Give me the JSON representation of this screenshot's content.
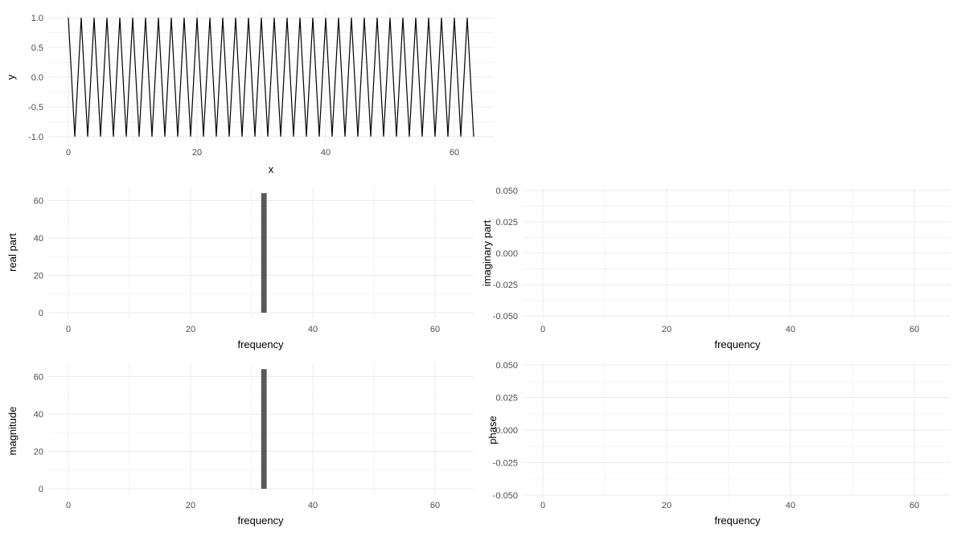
{
  "page": {
    "background": "#FFFFFF",
    "description": "Five-panel plot grid: time-domain signal and its FFT (real part, imaginary part, magnitude, phase)"
  },
  "colors": {
    "background": "#FFFFFF",
    "grid_major": "#EBEBEB",
    "grid_minor": "#F3F3F3",
    "tick_label": "#4D4D4D",
    "axis_title": "#000000",
    "signal_line": "#000000",
    "bar_fill": "#595959"
  },
  "chart_data": [
    {
      "id": "signal",
      "type": "line",
      "title": "",
      "xlabel": "x",
      "ylabel": "y",
      "xlim": [
        0,
        63
      ],
      "ylim": [
        -1,
        1
      ],
      "x_start": 0,
      "x_step": 1,
      "values": [
        1,
        -1,
        1,
        -1,
        1,
        -1,
        1,
        -1,
        1,
        -1,
        1,
        -1,
        1,
        -1,
        1,
        -1,
        1,
        -1,
        1,
        -1,
        1,
        -1,
        1,
        -1,
        1,
        -1,
        1,
        -1,
        1,
        -1,
        1,
        -1,
        1,
        -1,
        1,
        -1,
        1,
        -1,
        1,
        -1,
        1,
        -1,
        1,
        -1,
        1,
        -1,
        1,
        -1,
        1,
        -1,
        1,
        -1,
        1,
        -1,
        1,
        -1,
        1,
        -1,
        1,
        -1,
        1,
        -1,
        1,
        -1
      ],
      "xticks": {
        "values": [
          0,
          20,
          40,
          60
        ],
        "labels": [
          "0",
          "20",
          "40",
          "60"
        ]
      },
      "yticks": {
        "values": [
          1.0,
          0.5,
          0.0,
          -0.5,
          -1.0
        ],
        "labels": [
          "1.0",
          "0.5",
          "0.0",
          "-0.5",
          "-1.0"
        ]
      },
      "grid": "major+minor",
      "legend": "none"
    },
    {
      "id": "real-part",
      "type": "bar",
      "title": "",
      "xlabel": "frequency",
      "ylabel": "real part",
      "xlim": [
        0,
        63
      ],
      "ylim": [
        0,
        64
      ],
      "x_start": 0,
      "x_step": 1,
      "values": [
        0,
        0,
        0,
        0,
        0,
        0,
        0,
        0,
        0,
        0,
        0,
        0,
        0,
        0,
        0,
        0,
        0,
        0,
        0,
        0,
        0,
        0,
        0,
        0,
        0,
        0,
        0,
        0,
        0,
        0,
        0,
        0,
        64,
        0,
        0,
        0,
        0,
        0,
        0,
        0,
        0,
        0,
        0,
        0,
        0,
        0,
        0,
        0,
        0,
        0,
        0,
        0,
        0,
        0,
        0,
        0,
        0,
        0,
        0,
        0,
        0,
        0,
        0,
        0
      ],
      "xticks": {
        "values": [
          0,
          20,
          40,
          60
        ],
        "labels": [
          "0",
          "20",
          "40",
          "60"
        ]
      },
      "yticks": {
        "values": [
          0,
          20,
          40,
          60
        ],
        "labels": [
          "0",
          "20",
          "40",
          "60"
        ]
      },
      "grid": "major+minor",
      "legend": "none"
    },
    {
      "id": "imaginary-part",
      "type": "bar",
      "title": "",
      "xlabel": "frequency",
      "ylabel": "imaginary part",
      "xlim": [
        0,
        63
      ],
      "ylim": [
        -0.05,
        0.05
      ],
      "x_start": 0,
      "x_step": 1,
      "values": [
        0,
        0,
        0,
        0,
        0,
        0,
        0,
        0,
        0,
        0,
        0,
        0,
        0,
        0,
        0,
        0,
        0,
        0,
        0,
        0,
        0,
        0,
        0,
        0,
        0,
        0,
        0,
        0,
        0,
        0,
        0,
        0,
        0,
        0,
        0,
        0,
        0,
        0,
        0,
        0,
        0,
        0,
        0,
        0,
        0,
        0,
        0,
        0,
        0,
        0,
        0,
        0,
        0,
        0,
        0,
        0,
        0,
        0,
        0,
        0,
        0,
        0,
        0,
        0
      ],
      "xticks": {
        "values": [
          0,
          20,
          40,
          60
        ],
        "labels": [
          "0",
          "20",
          "40",
          "60"
        ]
      },
      "yticks": {
        "values": [
          0.05,
          0.025,
          0,
          -0.025,
          -0.05
        ],
        "labels": [
          "0.050",
          "0.025",
          "0.000",
          "-0.025",
          "-0.050"
        ]
      },
      "grid": "major+minor",
      "legend": "none"
    },
    {
      "id": "magnitude",
      "type": "bar",
      "title": "",
      "xlabel": "frequency",
      "ylabel": "magnitude",
      "xlim": [
        0,
        63
      ],
      "ylim": [
        0,
        64
      ],
      "x_start": 0,
      "x_step": 1,
      "values": [
        0,
        0,
        0,
        0,
        0,
        0,
        0,
        0,
        0,
        0,
        0,
        0,
        0,
        0,
        0,
        0,
        0,
        0,
        0,
        0,
        0,
        0,
        0,
        0,
        0,
        0,
        0,
        0,
        0,
        0,
        0,
        0,
        64,
        0,
        0,
        0,
        0,
        0,
        0,
        0,
        0,
        0,
        0,
        0,
        0,
        0,
        0,
        0,
        0,
        0,
        0,
        0,
        0,
        0,
        0,
        0,
        0,
        0,
        0,
        0,
        0,
        0,
        0,
        0
      ],
      "xticks": {
        "values": [
          0,
          20,
          40,
          60
        ],
        "labels": [
          "0",
          "20",
          "40",
          "60"
        ]
      },
      "yticks": {
        "values": [
          0,
          20,
          40,
          60
        ],
        "labels": [
          "0",
          "20",
          "40",
          "60"
        ]
      },
      "grid": "major+minor",
      "legend": "none"
    },
    {
      "id": "phase",
      "type": "bar",
      "title": "",
      "xlabel": "frequency",
      "ylabel": "phase",
      "xlim": [
        0,
        63
      ],
      "ylim": [
        -0.05,
        0.05
      ],
      "x_start": 0,
      "x_step": 1,
      "values": [
        0,
        0,
        0,
        0,
        0,
        0,
        0,
        0,
        0,
        0,
        0,
        0,
        0,
        0,
        0,
        0,
        0,
        0,
        0,
        0,
        0,
        0,
        0,
        0,
        0,
        0,
        0,
        0,
        0,
        0,
        0,
        0,
        0,
        0,
        0,
        0,
        0,
        0,
        0,
        0,
        0,
        0,
        0,
        0,
        0,
        0,
        0,
        0,
        0,
        0,
        0,
        0,
        0,
        0,
        0,
        0,
        0,
        0,
        0,
        0,
        0,
        0,
        0,
        0
      ],
      "xticks": {
        "values": [
          0,
          20,
          40,
          60
        ],
        "labels": [
          "0",
          "20",
          "40",
          "60"
        ]
      },
      "yticks": {
        "values": [
          0.05,
          0.025,
          0,
          -0.025,
          -0.05
        ],
        "labels": [
          "0.050",
          "0.025",
          "0.000",
          "-0.025",
          "-0.050"
        ]
      },
      "grid": "major+minor",
      "legend": "none"
    }
  ]
}
